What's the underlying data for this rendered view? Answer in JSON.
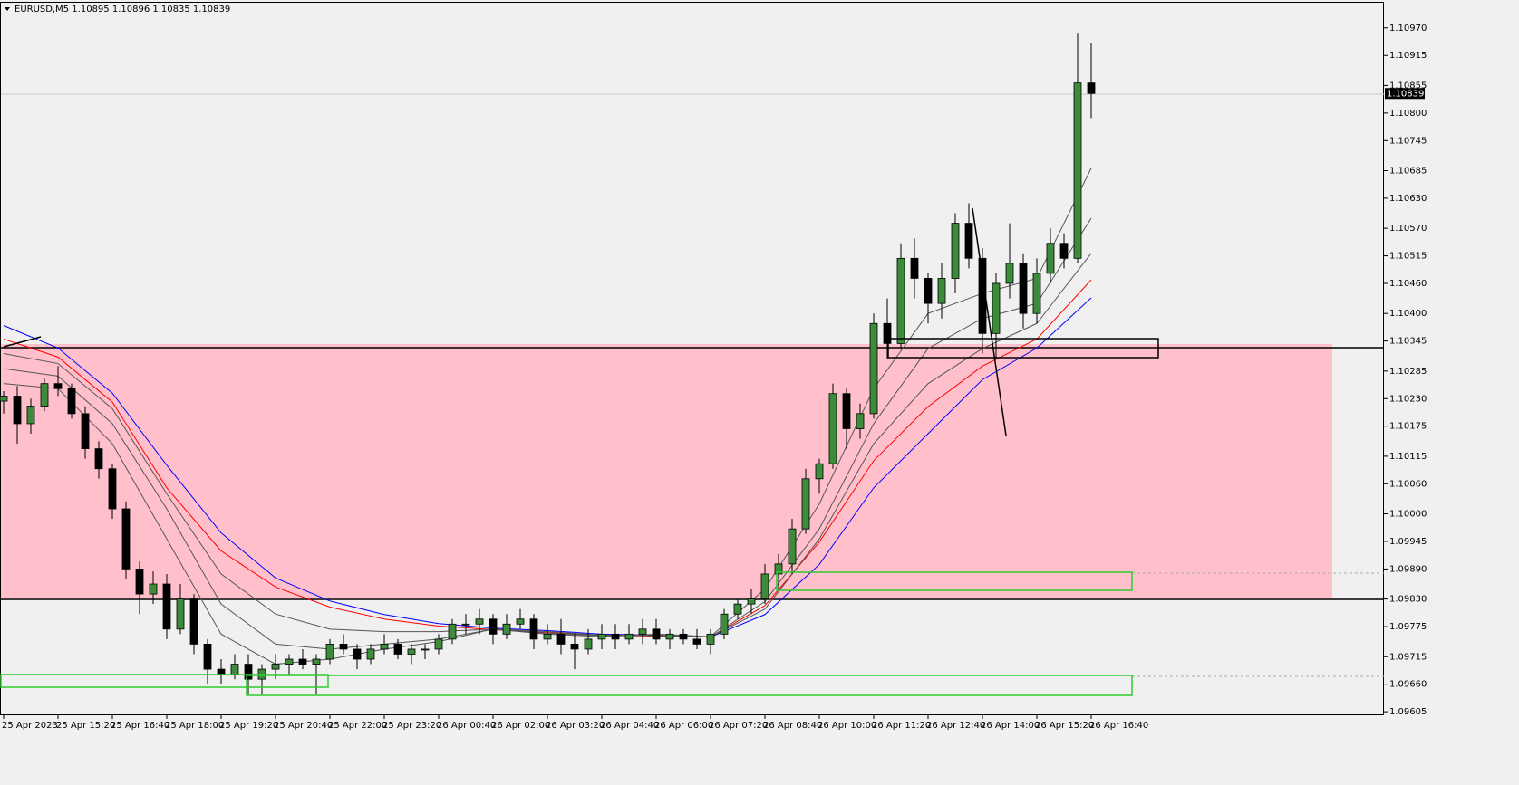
{
  "chart_data": {
    "type": "candlestick",
    "title": "EURUSD,M5  1.10895 1.10896 1.10835 1.10839",
    "categories": [
      "25 Apr 2023",
      null,
      null,
      null,
      "25 Apr 15:20",
      null,
      null,
      null,
      "25 Apr 16:40",
      null,
      null,
      null,
      "25 Apr 18:00",
      null,
      null,
      null,
      "25 Apr 19:20",
      null,
      null,
      null,
      "25 Apr 20:40",
      null,
      null,
      null,
      "25 Apr 22:00",
      null,
      null,
      null,
      "25 Apr 23:20",
      null,
      null,
      null,
      "26 Apr 00:40",
      null,
      null,
      null,
      "26 Apr 02:00",
      null,
      null,
      null,
      "26 Apr 03:20",
      null,
      null,
      null,
      "26 Apr 04:40",
      null,
      null,
      null,
      "26 Apr 06:00",
      null,
      null,
      null,
      "26 Apr 07:20",
      null,
      null,
      null,
      "26 Apr 08:40",
      null,
      null,
      null,
      "26 Apr 10:00",
      null,
      null,
      null,
      "26 Apr 11:20",
      null,
      null,
      null,
      "26 Apr 12:40",
      null,
      null,
      null,
      "26 Apr 14:00",
      null,
      null,
      null,
      "26 Apr 15:20",
      null,
      null,
      null,
      "26 Apr 16:40"
    ],
    "open": [
      1.10225,
      1.10235,
      1.1018,
      1.10215,
      1.1026,
      1.1025,
      1.102,
      1.1013,
      1.1009,
      1.1001,
      1.0989,
      1.0984,
      1.0986,
      1.0977,
      1.0983,
      1.0974,
      1.0969,
      1.0968,
      1.097,
      1.0967,
      1.0969,
      1.097,
      1.0971,
      1.097,
      1.0971,
      1.0974,
      1.0973,
      1.0971,
      1.0973,
      1.0974,
      1.0972,
      1.0973,
      1.0973,
      1.0975,
      1.0978,
      1.0978,
      1.0979,
      1.0976,
      1.0978,
      1.0979,
      1.0975,
      1.0976,
      1.0974,
      1.0973,
      1.0975,
      1.0976,
      1.0975,
      1.0976,
      1.0977,
      1.0975,
      1.0976,
      1.0975,
      1.0974,
      1.0976,
      1.098,
      1.0982,
      1.0983,
      1.0988,
      1.099,
      1.0997,
      1.1007,
      1.101,
      1.1024,
      1.1017,
      1.102,
      1.1038,
      1.1034,
      1.1051,
      1.1047,
      1.1042,
      1.1047,
      1.1058,
      1.1051,
      1.1036,
      1.1046,
      1.105,
      1.104,
      1.1048,
      1.1054,
      1.1051,
      1.1086
    ],
    "high": [
      1.10245,
      1.10255,
      1.1023,
      1.1027,
      1.10295,
      1.1026,
      1.10215,
      1.10145,
      1.101,
      1.10025,
      1.09905,
      1.09885,
      1.0988,
      1.0986,
      1.0984,
      1.0975,
      1.0971,
      1.0972,
      1.0972,
      1.097,
      1.0972,
      1.0972,
      1.0973,
      1.0972,
      1.0975,
      1.0976,
      1.0974,
      1.0974,
      1.0976,
      1.0975,
      1.0974,
      1.0974,
      1.0976,
      1.0979,
      1.098,
      1.0981,
      1.098,
      1.098,
      1.0981,
      1.098,
      1.0978,
      1.0979,
      1.0976,
      1.0977,
      1.0978,
      1.0978,
      1.0978,
      1.0979,
      1.0979,
      1.0977,
      1.0977,
      1.0977,
      1.0977,
      1.0981,
      1.0983,
      1.0985,
      1.099,
      1.0992,
      1.0999,
      1.1009,
      1.1011,
      1.1026,
      1.1025,
      1.1022,
      1.104,
      1.1043,
      1.1054,
      1.1055,
      1.1048,
      1.105,
      1.106,
      1.1062,
      1.1053,
      1.1048,
      1.1058,
      1.1052,
      1.1051,
      1.1057,
      1.1056,
      1.1096,
      1.1094
    ],
    "low": [
      1.102,
      1.1014,
      1.1016,
      1.10205,
      1.10235,
      1.1019,
      1.1011,
      1.1007,
      1.0999,
      1.0987,
      1.098,
      1.0982,
      1.0975,
      1.0976,
      1.0972,
      1.0966,
      1.0966,
      1.0967,
      1.0964,
      1.0964,
      1.0967,
      1.0968,
      1.0969,
      1.0964,
      1.097,
      1.0972,
      1.0969,
      1.097,
      1.0972,
      1.0971,
      1.097,
      1.0971,
      1.0972,
      1.0974,
      1.0976,
      1.0976,
      1.0974,
      1.0975,
      1.0977,
      1.0973,
      1.0974,
      1.0972,
      1.0969,
      1.0972,
      1.0973,
      1.0973,
      1.0974,
      1.0974,
      1.0974,
      1.0973,
      1.0974,
      1.0973,
      1.0972,
      1.0975,
      1.0979,
      1.098,
      1.0982,
      1.0985,
      1.0988,
      1.0996,
      1.1004,
      1.1009,
      1.1013,
      1.1015,
      1.1019,
      1.1031,
      1.1033,
      1.1043,
      1.1038,
      1.1039,
      1.1044,
      1.1049,
      1.1032,
      1.1031,
      1.1043,
      1.1037,
      1.1038,
      1.1046,
      1.1049,
      1.105,
      1.1079
    ],
    "close": [
      1.10235,
      1.1018,
      1.10215,
      1.1026,
      1.1025,
      1.102,
      1.1013,
      1.1009,
      1.1001,
      1.0989,
      1.0984,
      1.0986,
      1.0977,
      1.0983,
      1.0974,
      1.0969,
      1.0968,
      1.097,
      1.0967,
      1.0969,
      1.097,
      1.0971,
      1.097,
      1.0971,
      1.0974,
      1.0973,
      1.0971,
      1.0973,
      1.0974,
      1.0972,
      1.0973,
      1.0973,
      1.0975,
      1.0978,
      1.0978,
      1.0979,
      1.0976,
      1.0978,
      1.0979,
      1.0975,
      1.0976,
      1.0974,
      1.0973,
      1.0975,
      1.0976,
      1.0975,
      1.0976,
      1.0977,
      1.0975,
      1.0976,
      1.0975,
      1.0974,
      1.0976,
      1.098,
      1.0982,
      1.0983,
      1.0988,
      1.099,
      1.0997,
      1.1007,
      1.101,
      1.1024,
      1.1017,
      1.102,
      1.1038,
      1.1034,
      1.1051,
      1.1047,
      1.1042,
      1.1047,
      1.1058,
      1.1051,
      1.1036,
      1.1046,
      1.105,
      1.104,
      1.1048,
      1.1054,
      1.1051,
      1.1086,
      1.10839
    ],
    "up_color": "#3c8c3c",
    "down_color": "#000000",
    "indicator_x": [
      0,
      4,
      8,
      12,
      16,
      20,
      24,
      28,
      32,
      36,
      40,
      44,
      48,
      52,
      56,
      60,
      64,
      68,
      72,
      76,
      80
    ],
    "indicators": [
      {
        "color": "#0000ff",
        "values": [
          1.10376,
          1.10331,
          1.10241,
          1.10097,
          1.09962,
          1.09872,
          1.09826,
          1.09799,
          1.09781,
          1.09772,
          1.09767,
          1.0976,
          1.09758,
          1.09754,
          1.09799,
          1.09899,
          1.10052,
          1.1016,
          1.10268,
          1.10331,
          1.10431
        ]
      },
      {
        "color": "#ff0000",
        "values": [
          1.10349,
          1.10313,
          1.10223,
          1.10052,
          1.09926,
          1.09854,
          1.09814,
          1.0979,
          1.09776,
          1.09769,
          1.09763,
          1.09758,
          1.09756,
          1.09754,
          1.09817,
          1.09944,
          1.10106,
          1.10214,
          1.10295,
          1.10349,
          1.10467
        ]
      },
      {
        "color": "#555555",
        "values": [
          1.1032,
          1.103,
          1.1021,
          1.1004,
          1.0988,
          1.098,
          1.0977,
          1.09765,
          1.09765,
          1.0977,
          1.09765,
          1.09758,
          1.09757,
          1.09754,
          1.0981,
          1.0995,
          1.1014,
          1.1026,
          1.1033,
          1.1038,
          1.1052
        ]
      },
      {
        "color": "#555555",
        "values": [
          1.1029,
          1.10275,
          1.1018,
          1.1001,
          1.0982,
          1.0974,
          1.0973,
          1.0974,
          1.0975,
          1.0977,
          1.09762,
          1.09757,
          1.09758,
          1.09754,
          1.09825,
          1.0997,
          1.1018,
          1.1033,
          1.1039,
          1.1042,
          1.1059
        ]
      },
      {
        "color": "#555555",
        "values": [
          1.1026,
          1.1025,
          1.1014,
          1.0995,
          1.0976,
          1.097,
          1.0971,
          1.0973,
          1.09745,
          1.0977,
          1.0976,
          1.09755,
          1.0976,
          1.09755,
          1.0985,
          1.1002,
          1.1025,
          1.104,
          1.1044,
          1.1047,
          1.1069
        ]
      }
    ],
    "last_price": 1.10839,
    "ylim": [
      1.09598,
      1.11022
    ],
    "yticks": [
      {
        "value": 1.1097,
        "label": "1.10970"
      },
      {
        "value": 1.10915,
        "label": "1.10915"
      },
      {
        "value": 1.10855,
        "label": "1.10855"
      },
      {
        "value": 1.108,
        "label": "1.10800"
      },
      {
        "value": 1.10745,
        "label": "1.10745"
      },
      {
        "value": 1.10685,
        "label": "1.10685"
      },
      {
        "value": 1.1063,
        "label": "1.10630"
      },
      {
        "value": 1.1057,
        "label": "1.10570"
      },
      {
        "value": 1.10515,
        "label": "1.10515"
      },
      {
        "value": 1.1046,
        "label": "1.10460"
      },
      {
        "value": 1.104,
        "label": "1.10400"
      },
      {
        "value": 1.10345,
        "label": "1.10345"
      },
      {
        "value": 1.10285,
        "label": "1.10285"
      },
      {
        "value": 1.1023,
        "label": "1.10230"
      },
      {
        "value": 1.10175,
        "label": "1.10175"
      },
      {
        "value": 1.10115,
        "label": "1.10115"
      },
      {
        "value": 1.1006,
        "label": "1.10060"
      },
      {
        "value": 1.1,
        "label": "1.10000"
      },
      {
        "value": 1.09945,
        "label": "1.09945"
      },
      {
        "value": 1.0989,
        "label": "1.09890"
      },
      {
        "value": 1.0983,
        "label": "1.09830"
      },
      {
        "value": 1.09775,
        "label": "1.09775"
      },
      {
        "value": 1.09715,
        "label": "1.09715"
      },
      {
        "value": 1.0966,
        "label": "1.09660"
      },
      {
        "value": 1.09605,
        "label": "1.09605"
      }
    ]
  }
}
